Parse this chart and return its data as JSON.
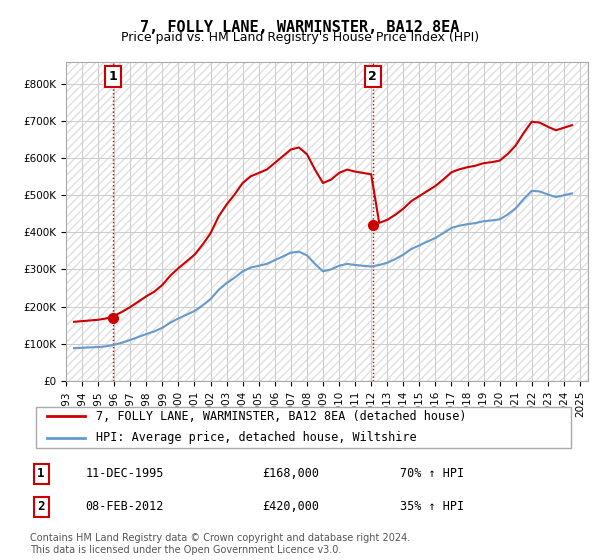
{
  "title": "7, FOLLY LANE, WARMINSTER, BA12 8EA",
  "subtitle": "Price paid vs. HM Land Registry's House Price Index (HPI)",
  "ylabel": "",
  "xlim_start": 1993.0,
  "xlim_end": 2025.5,
  "ylim_min": 0,
  "ylim_max": 860000,
  "yticks": [
    0,
    100000,
    200000,
    300000,
    400000,
    500000,
    600000,
    700000,
    800000
  ],
  "ytick_labels": [
    "£0",
    "£100K",
    "£200K",
    "£300K",
    "£400K",
    "£500K",
    "£600K",
    "£700K",
    "£800K"
  ],
  "xticks": [
    1993,
    1994,
    1995,
    1996,
    1997,
    1998,
    1999,
    2000,
    2001,
    2002,
    2003,
    2004,
    2005,
    2006,
    2007,
    2008,
    2009,
    2010,
    2011,
    2012,
    2013,
    2014,
    2015,
    2016,
    2017,
    2018,
    2019,
    2020,
    2021,
    2022,
    2023,
    2024,
    2025
  ],
  "sale1_x": 1995.94,
  "sale1_y": 168000,
  "sale1_label": "1",
  "sale2_x": 2012.1,
  "sale2_y": 420000,
  "sale2_label": "2",
  "sale1_vline_color": "#cc0000",
  "sale2_vline_color": "#cc0000",
  "hpi_color": "#6699cc",
  "price_color": "#cc0000",
  "background_color": "#ffffff",
  "plot_bg_color": "#f5f5f5",
  "grid_color": "#cccccc",
  "hatch_color": "#dddddd",
  "legend_line1": "7, FOLLY LANE, WARMINSTER, BA12 8EA (detached house)",
  "legend_line2": "HPI: Average price, detached house, Wiltshire",
  "annotation1_date": "11-DEC-1995",
  "annotation1_price": "£168,000",
  "annotation1_hpi": "70% ↑ HPI",
  "annotation2_date": "08-FEB-2012",
  "annotation2_price": "£420,000",
  "annotation2_hpi": "35% ↑ HPI",
  "footer": "Contains HM Land Registry data © Crown copyright and database right 2024.\nThis data is licensed under the Open Government Licence v3.0.",
  "title_fontsize": 11,
  "subtitle_fontsize": 9,
  "tick_fontsize": 7.5,
  "legend_fontsize": 8.5,
  "annotation_fontsize": 8.5,
  "footer_fontsize": 7
}
